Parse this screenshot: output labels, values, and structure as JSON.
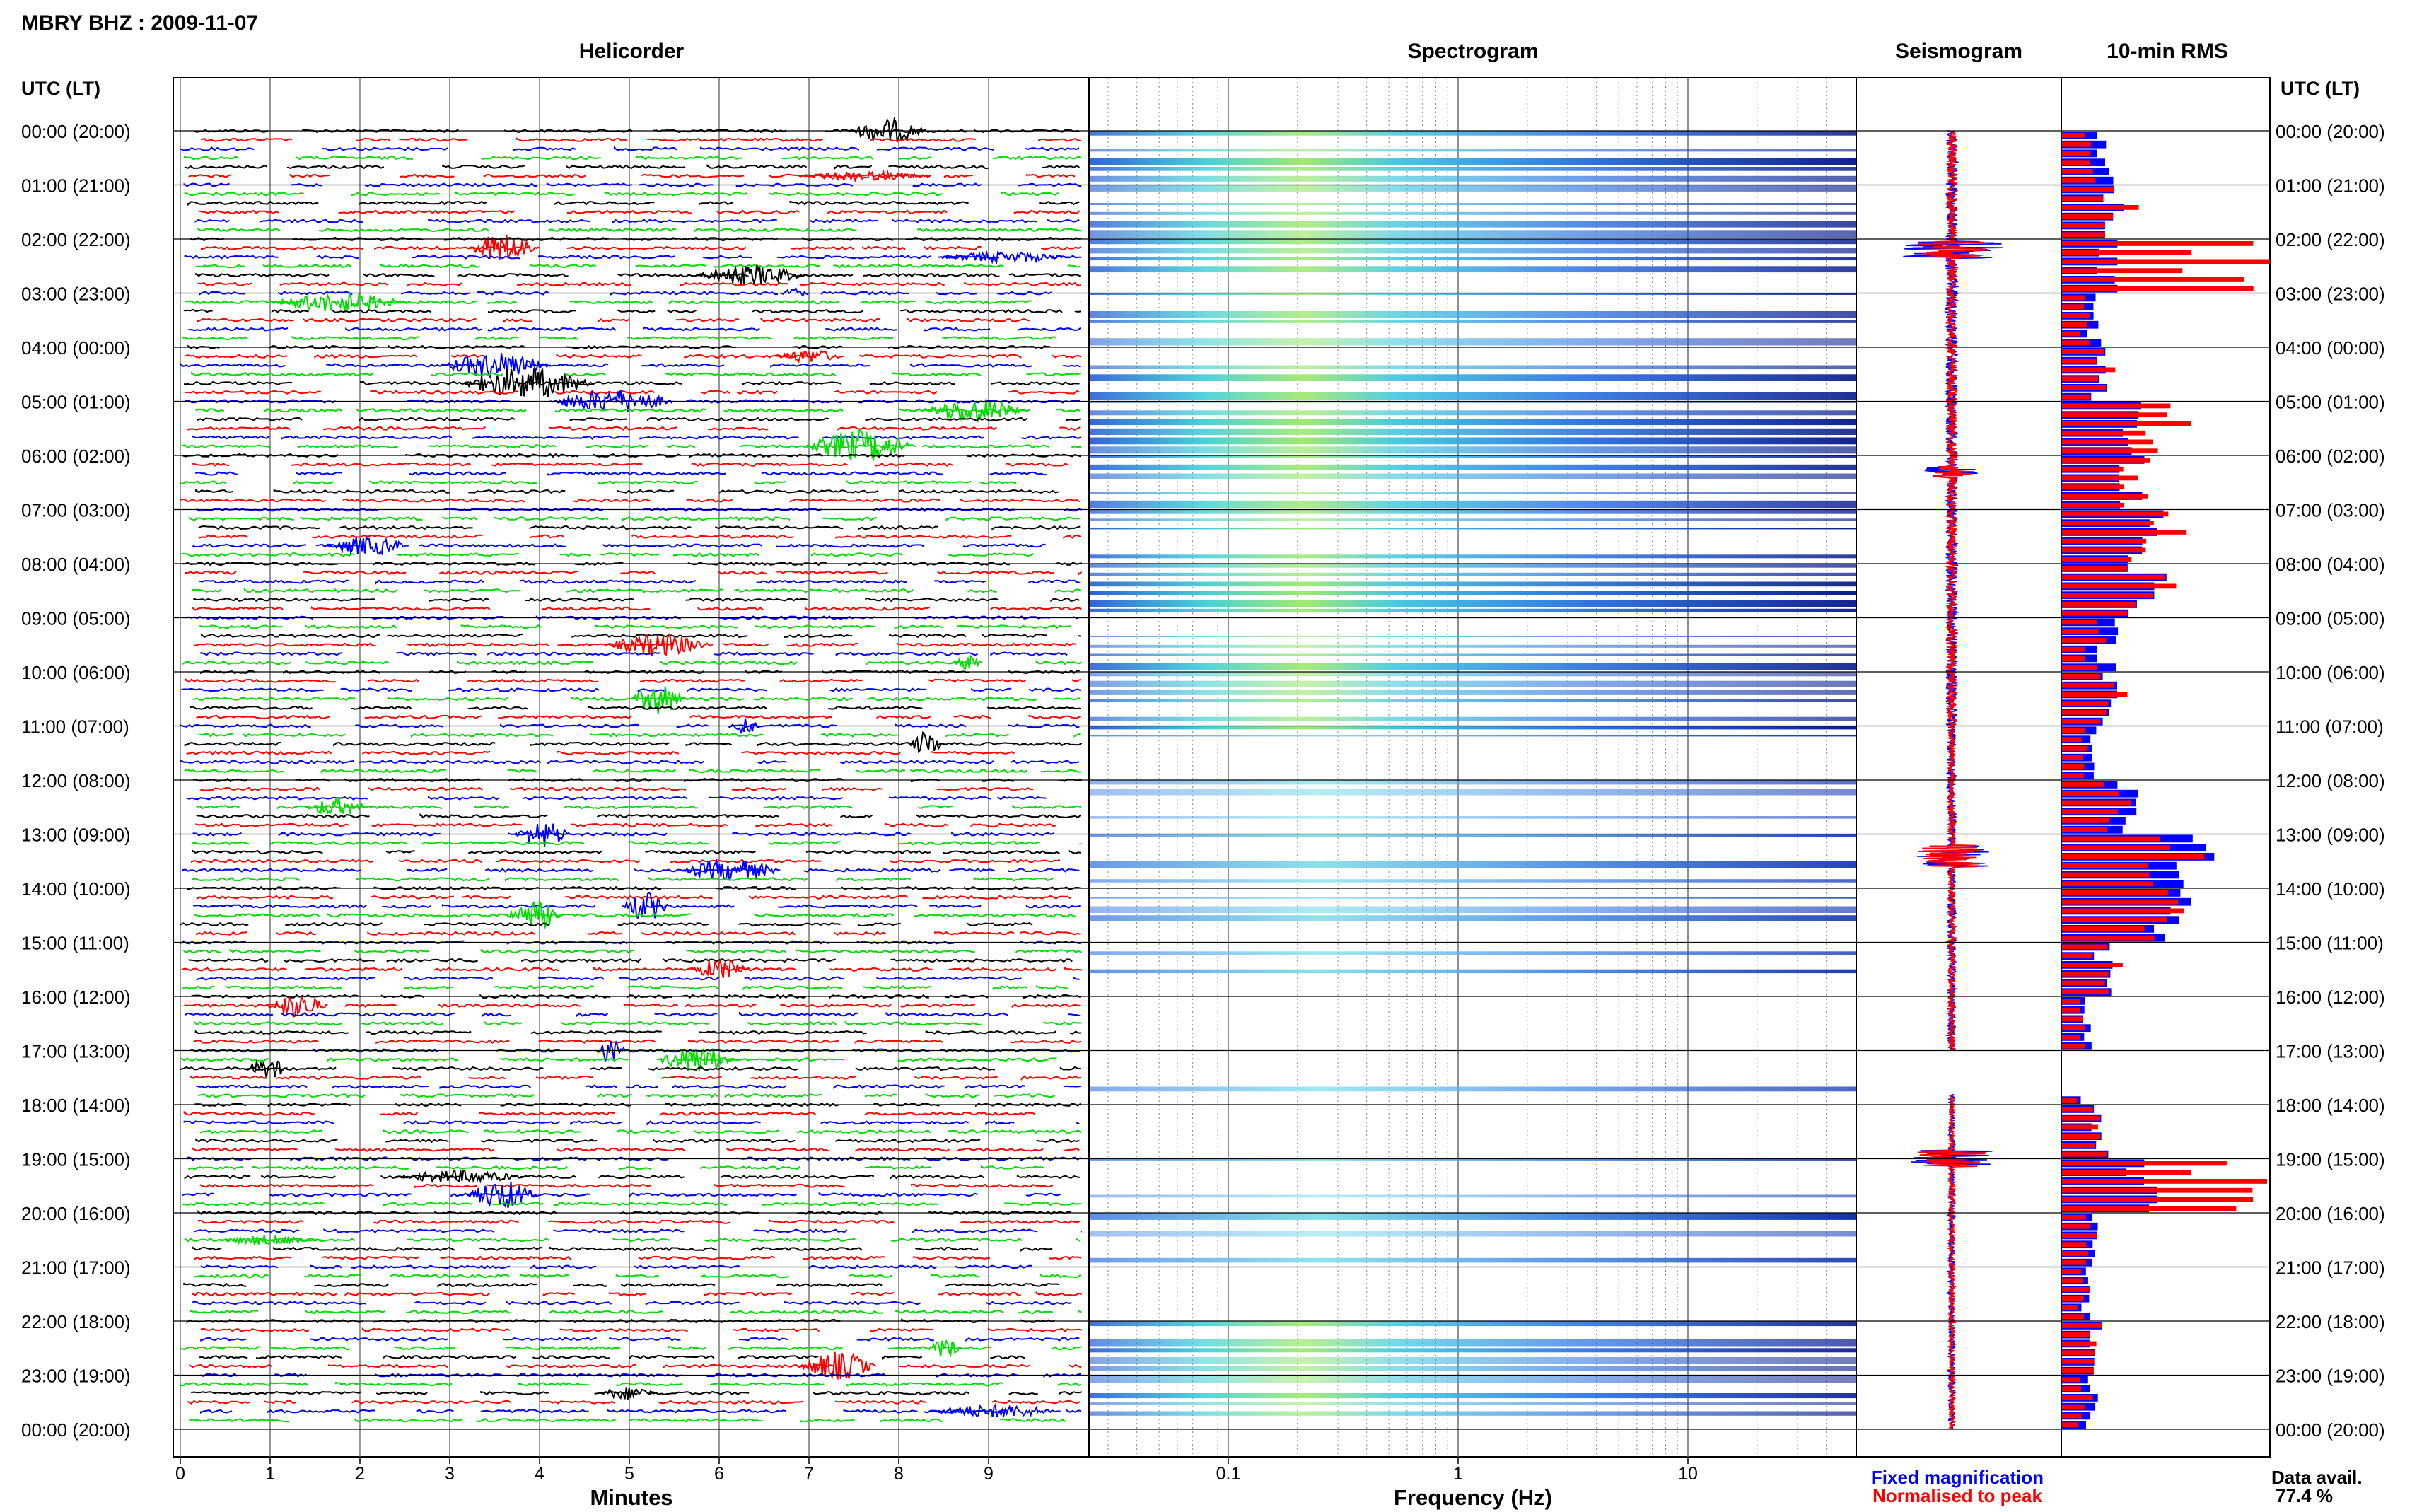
{
  "station_title": "MBRY BHZ : 2009-11-07",
  "panels": {
    "helicorder": "Helicorder",
    "spectrogram": "Spectrogram",
    "seismogram": "Seismogram",
    "rms": "10-min RMS"
  },
  "time_axis_label": "UTC (LT)",
  "hour_labels": [
    "00:00 (20:00)",
    "01:00 (21:00)",
    "02:00 (22:00)",
    "03:00 (23:00)",
    "04:00 (00:00)",
    "05:00 (01:00)",
    "06:00 (02:00)",
    "07:00 (03:00)",
    "08:00 (04:00)",
    "09:00 (05:00)",
    "10:00 (06:00)",
    "11:00 (07:00)",
    "12:00 (08:00)",
    "13:00 (09:00)",
    "14:00 (10:00)",
    "15:00 (11:00)",
    "16:00 (12:00)",
    "17:00 (13:00)",
    "18:00 (14:00)",
    "19:00 (15:00)",
    "20:00 (16:00)",
    "21:00 (17:00)",
    "22:00 (18:00)",
    "23:00 (19:00)",
    "00:00 (20:00)"
  ],
  "minutes_axis": {
    "label": "Minutes",
    "ticks": [
      "0",
      "1",
      "2",
      "3",
      "4",
      "5",
      "6",
      "7",
      "8",
      "9"
    ]
  },
  "frequency_axis": {
    "label": "Frequency (Hz)",
    "ticks": [
      "0.1",
      "1",
      "10"
    ],
    "scale": "log"
  },
  "legend": {
    "fixed": "Fixed magnification",
    "normalised": "Normalised to peak"
  },
  "data_availability": {
    "label": "Data avail.",
    "value": "77.4 %"
  },
  "colors": {
    "line_cycle": [
      "#000000",
      "#ff0000",
      "#0000ff",
      "#00dd00"
    ],
    "fixed": "#0000ff",
    "normalised": "#ff0000"
  },
  "chart_data": {
    "type": "bar",
    "title": "10-min RMS",
    "categories": [
      "00:00",
      "01:00",
      "02:00",
      "03:00",
      "04:00",
      "05:00",
      "06:00",
      "07:00",
      "08:00",
      "09:00",
      "10:00",
      "11:00",
      "12:00",
      "13:00",
      "14:00",
      "15:00",
      "16:00",
      "17:00",
      "18:00",
      "19:00",
      "20:00",
      "21:00",
      "22:00",
      "23:00"
    ],
    "series": [
      {
        "name": "Fixed magnification",
        "values": [
          0.22,
          0.24,
          0.22,
          0.16,
          0.18,
          0.32,
          0.36,
          0.42,
          0.42,
          0.22,
          0.22,
          0.14,
          0.32,
          0.62,
          0.58,
          0.2,
          0.12,
          0.1,
          0.18,
          0.4,
          0.14,
          0.12,
          0.16,
          0.14
        ]
      },
      {
        "name": "Normalised to peak",
        "values": [
          0.18,
          0.3,
          0.95,
          0.14,
          0.22,
          0.55,
          0.48,
          0.55,
          0.52,
          0.18,
          0.26,
          0.12,
          0.3,
          0.58,
          0.65,
          0.24,
          0.12,
          0.1,
          0.22,
          1.0,
          0.14,
          0.12,
          0.2,
          0.12
        ]
      }
    ],
    "gaps_hours": [
      17.0,
      17.8
    ],
    "notes_ylim": [
      0,
      1
    ]
  }
}
